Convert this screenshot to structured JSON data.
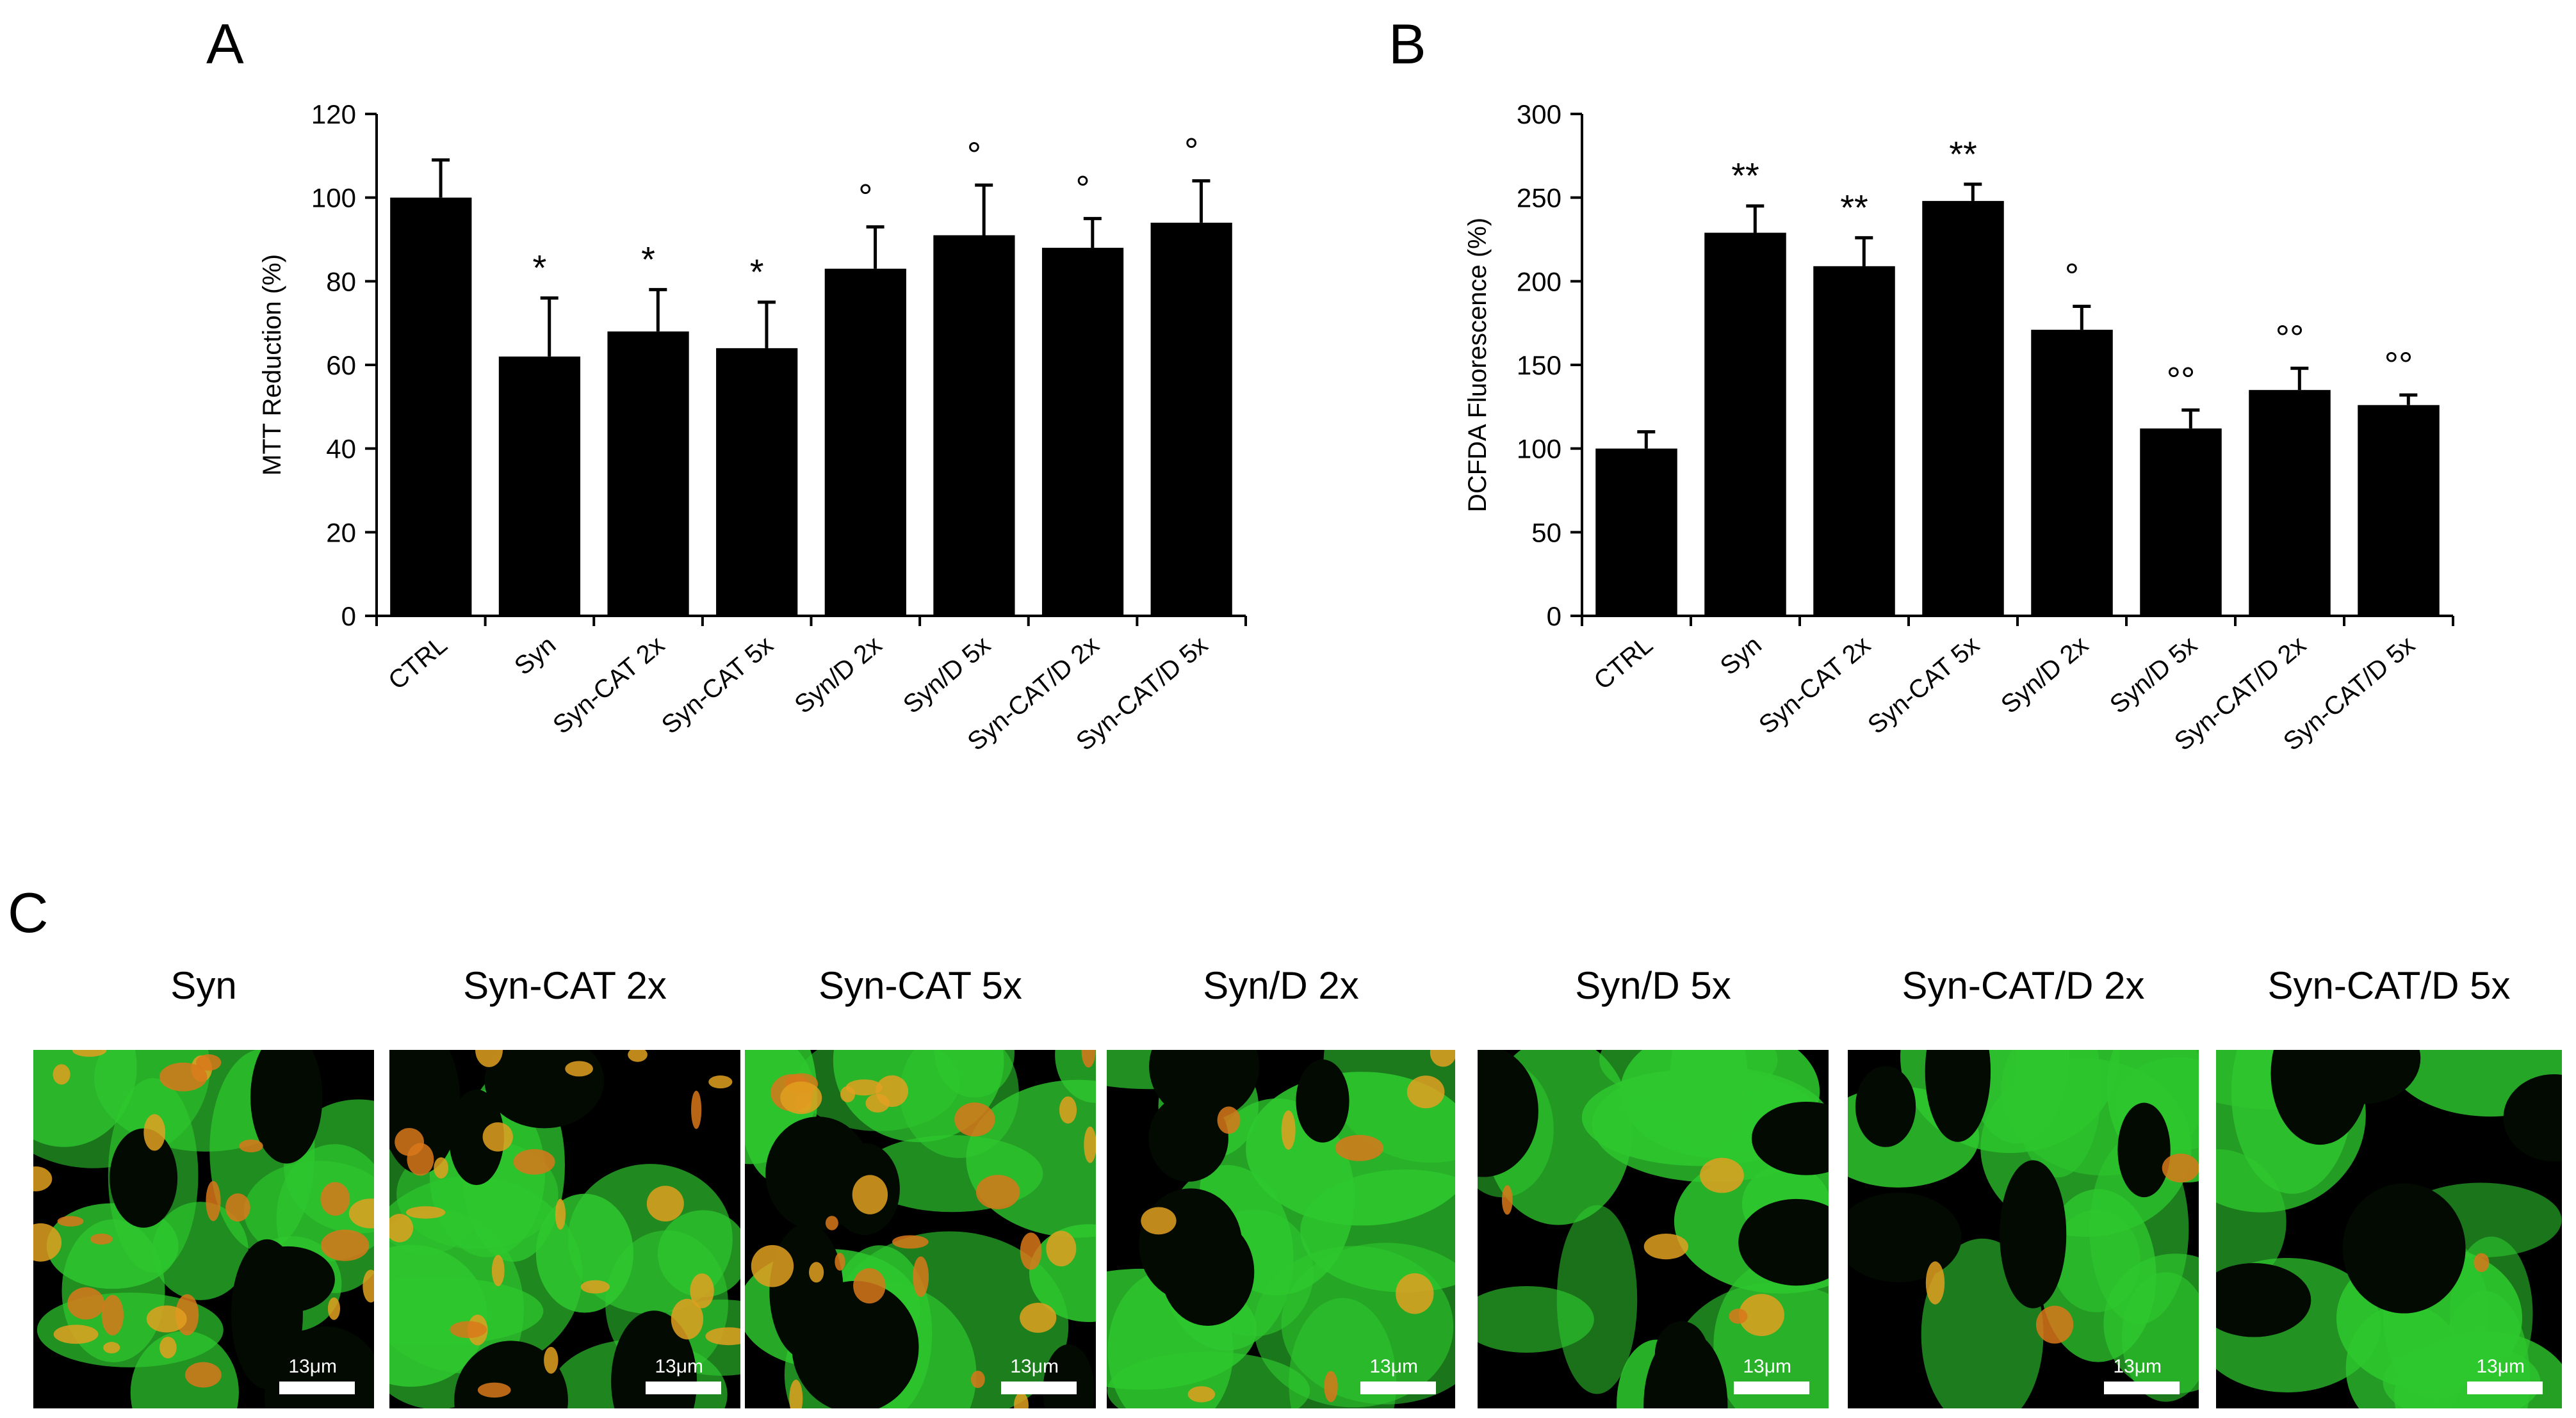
{
  "panel_labels": {
    "a": "A",
    "b": "B",
    "c": "C"
  },
  "chart_data": [
    {
      "type": "bar",
      "categories": [
        "CTRL",
        "Syn",
        "Syn-CAT 2x",
        "Syn-CAT 5x",
        "Syn/D 2x",
        "Syn/D 5x",
        "Syn-CAT/D 2x",
        "Syn-CAT/D 5x"
      ],
      "values": [
        100,
        62,
        68,
        64,
        83,
        91,
        88,
        94
      ],
      "errors": [
        9,
        14,
        10,
        11,
        10,
        12,
        7,
        10
      ],
      "annotations": [
        "",
        "*",
        "*",
        "*",
        "°",
        "°",
        "°",
        "°"
      ],
      "ylabel": "MTT Reduction (%)",
      "xlabel": "",
      "ylim": [
        0,
        120
      ],
      "yticks": [
        0,
        20,
        40,
        60,
        80,
        100,
        120
      ],
      "bar_color": "#000000",
      "grid": false
    },
    {
      "type": "bar",
      "categories": [
        "CTRL",
        "Syn",
        "Syn-CAT 2x",
        "Syn-CAT 5x",
        "Syn/D 2x",
        "Syn/D 5x",
        "Syn-CAT/D 2x",
        "Syn-CAT/D 5x"
      ],
      "values": [
        100,
        229,
        209,
        248,
        171,
        112,
        135,
        126
      ],
      "errors": [
        10,
        16,
        17,
        10,
        14,
        11,
        13,
        6
      ],
      "annotations": [
        "",
        "**",
        "**",
        "**",
        "°",
        "°°",
        "°°",
        "°°"
      ],
      "ylabel": "DCFDA Fluorescence (%)",
      "xlabel": "",
      "ylim": [
        0,
        300
      ],
      "yticks": [
        0,
        50,
        100,
        150,
        200,
        250,
        300
      ],
      "bar_color": "#000000",
      "grid": false
    }
  ],
  "micrographs": [
    {
      "title": "Syn",
      "scale_label": "13μm",
      "red_level": 0.85
    },
    {
      "title": "Syn-CAT 2x",
      "scale_label": "13μm",
      "red_level": 0.75
    },
    {
      "title": "Syn-CAT 5x",
      "scale_label": "13μm",
      "red_level": 0.9
    },
    {
      "title": "Syn/D 2x",
      "scale_label": "13μm",
      "red_level": 0.3
    },
    {
      "title": "Syn/D 5x",
      "scale_label": "13μm",
      "red_level": 0.15
    },
    {
      "title": "Syn-CAT/D 2x",
      "scale_label": "13μm",
      "red_level": 0.1
    },
    {
      "title": "Syn-CAT/D 5x",
      "scale_label": "13μm",
      "red_level": 0.03
    }
  ],
  "colors": {
    "green_stain": "#2ec82e",
    "red_stain": "#d8781a",
    "background": "#000000"
  }
}
